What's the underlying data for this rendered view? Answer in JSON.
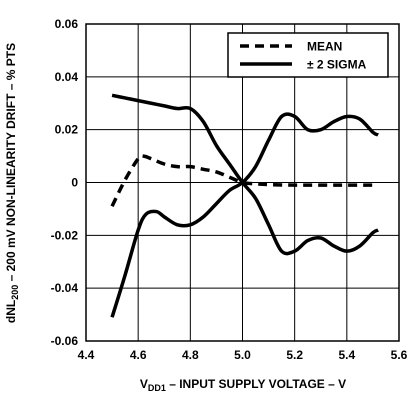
{
  "chart_data": {
    "type": "line",
    "xlabel_main": "V",
    "xlabel_sub": "DD1",
    "xlabel_rest": " – INPUT SUPPLY VOLTAGE – V",
    "ylabel_main": "dNL",
    "ylabel_sub": "200",
    "ylabel_rest": " – 200 mV NON-LINEARITY DRIFT – % PTS",
    "xlim": [
      4.4,
      5.6
    ],
    "ylim": [
      -0.06,
      0.06
    ],
    "x_ticks": [
      4.4,
      4.6,
      4.8,
      5.0,
      5.2,
      5.4,
      5.6
    ],
    "x_tick_labels": [
      "4.4",
      "4.6",
      "4.8",
      "5.0",
      "5.2",
      "5.4",
      "5.6"
    ],
    "y_ticks": [
      -0.06,
      -0.04,
      -0.02,
      0,
      0.02,
      0.04,
      0.06
    ],
    "y_tick_labels": [
      "-0.06",
      "-0.04",
      "-0.02",
      "0",
      "0.02",
      "0.04",
      "0.06"
    ],
    "grid": true,
    "legend_position": "top-right",
    "series": [
      {
        "name": "MEAN",
        "style": "dashed",
        "x": [
          4.5,
          4.55,
          4.6,
          4.62,
          4.65,
          4.7,
          4.75,
          4.8,
          4.85,
          4.9,
          4.95,
          5.0,
          5.05,
          5.1,
          5.2,
          5.3,
          5.4,
          5.52
        ],
        "y": [
          -0.009,
          0.001,
          0.009,
          0.01,
          0.009,
          0.007,
          0.006,
          0.006,
          0.005,
          0.004,
          0.002,
          0.0,
          -0.0005,
          -0.0008,
          -0.001,
          -0.001,
          -0.001,
          -0.001
        ]
      },
      {
        "name": "± 2 SIGMA",
        "style": "solid",
        "x": [
          4.5,
          4.55,
          4.6,
          4.65,
          4.7,
          4.75,
          4.8,
          4.85,
          4.9,
          4.95,
          5.0,
          5.05,
          5.1,
          5.15,
          5.2,
          5.25,
          5.3,
          5.35,
          5.4,
          5.45,
          5.5,
          5.52
        ],
        "y": [
          0.033,
          0.032,
          0.031,
          0.03,
          0.029,
          0.028,
          0.028,
          0.023,
          0.014,
          0.007,
          0.0,
          -0.006,
          -0.016,
          -0.026,
          -0.026,
          -0.022,
          -0.021,
          -0.024,
          -0.026,
          -0.024,
          -0.019,
          -0.018
        ]
      },
      {
        "name": "",
        "style": "solid",
        "x": [
          4.5,
          4.55,
          4.6,
          4.63,
          4.67,
          4.7,
          4.75,
          4.8,
          4.85,
          4.9,
          4.95,
          5.0,
          5.05,
          5.1,
          5.15,
          5.2,
          5.25,
          5.3,
          5.35,
          5.4,
          5.45,
          5.5,
          5.52
        ],
        "y": [
          -0.051,
          -0.035,
          -0.018,
          -0.012,
          -0.011,
          -0.013,
          -0.016,
          -0.016,
          -0.013,
          -0.008,
          -0.003,
          0.0,
          0.006,
          0.016,
          0.025,
          0.025,
          0.02,
          0.02,
          0.023,
          0.025,
          0.024,
          0.019,
          0.018
        ]
      }
    ]
  }
}
